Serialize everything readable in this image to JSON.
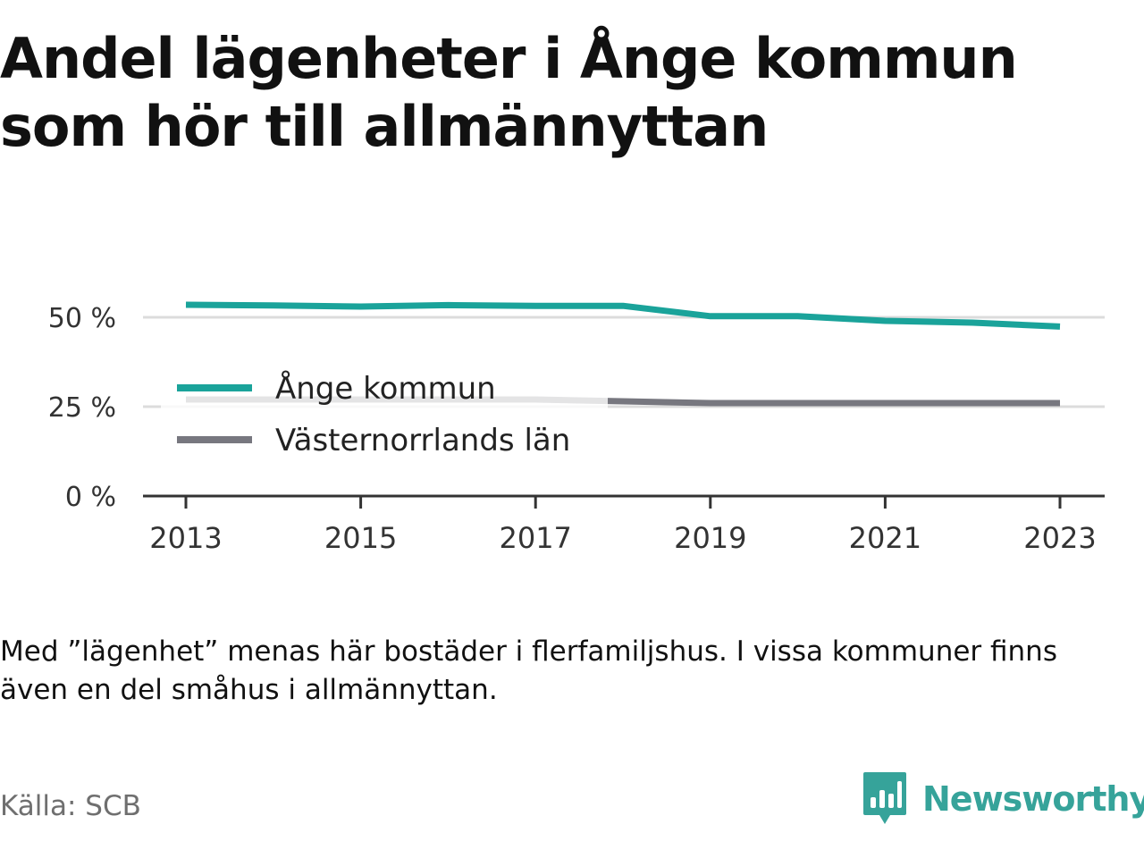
{
  "title_line1": "Andel lägenheter i Ånge kommun",
  "title_line2": "som hör till allmännyttan",
  "note": "Med ”lägenhet” menas här bostäder i flerfamiljshus. I vissa kommuner finns även en del småhus i allmännyttan.",
  "source": "Källa: SCB",
  "brand": {
    "name": "Newsworthy",
    "logo_icon": "bar-chart-speech-bubble-icon",
    "color": "#36a39a"
  },
  "chart_data": {
    "type": "line",
    "x": [
      2013,
      2014,
      2015,
      2016,
      2017,
      2018,
      2019,
      2020,
      2021,
      2022,
      2023
    ],
    "x_ticks": [
      "2013",
      "2015",
      "2017",
      "2019",
      "2021",
      "2023"
    ],
    "y_ticks": [
      "0 %",
      "25 %",
      "50 %"
    ],
    "ylim": [
      0,
      50
    ],
    "grid": true,
    "legend_position": "left",
    "series": [
      {
        "name": "Ånge kommun",
        "color": "#1aa39a",
        "values": [
          53.5,
          53.3,
          53.0,
          53.4,
          53.2,
          53.2,
          50.3,
          50.3,
          49.0,
          48.5,
          47.4
        ]
      },
      {
        "name": "Västernorrlands län",
        "color": "#77777f",
        "values": [
          27.0,
          27.0,
          27.0,
          27.0,
          27.0,
          26.5,
          26.0,
          26.0,
          26.0,
          26.0,
          26.0
        ]
      }
    ]
  }
}
